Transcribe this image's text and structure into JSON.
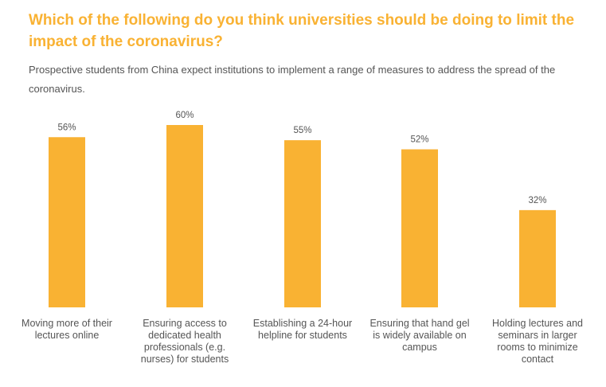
{
  "title": "Which of the following do you think universities should be doing to limit the impact of the coronavirus?",
  "subtitle": "Prospective students from China expect institutions to implement a range of measures to address the spread of the coronavirus.",
  "accent_color": "#F9B233",
  "text_color": "#555555",
  "chart_data": {
    "type": "bar",
    "categories": [
      "Moving more of their lectures online",
      "Ensuring access to dedicated health professionals (e.g. nurses) for students",
      "Establishing a 24-hour helpline for students",
      "Ensuring that hand gel is widely available on campus",
      "Holding lectures and seminars in larger rooms to minimize contact"
    ],
    "values": [
      56,
      60,
      55,
      52,
      32
    ],
    "value_labels": [
      "56%",
      "60%",
      "55%",
      "52%",
      "32%"
    ],
    "ylabel": "",
    "xlabel": "",
    "ylim": [
      0,
      60
    ],
    "grid": false,
    "legend": "none"
  }
}
